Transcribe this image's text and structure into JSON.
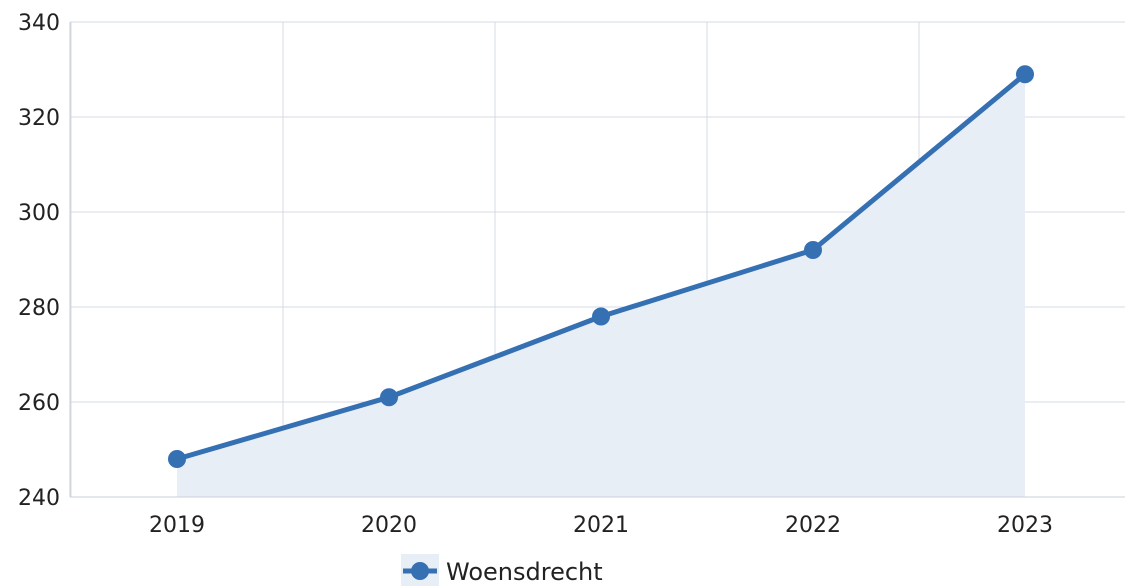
{
  "chart_data": {
    "type": "area",
    "categories": [
      "2019",
      "2020",
      "2021",
      "2022",
      "2023"
    ],
    "series": [
      {
        "name": "Woensdrecht",
        "values": [
          248,
          261,
          278,
          292,
          329
        ]
      }
    ],
    "ylim": [
      240,
      340
    ],
    "yticks": [
      240,
      260,
      280,
      300,
      320,
      340
    ],
    "grid": true,
    "legend_position": "bottom",
    "colors": {
      "line": "#3570b3",
      "fill": "#e8eef6",
      "grid": "#d6dbe3",
      "axis": "#c8d0da"
    }
  }
}
